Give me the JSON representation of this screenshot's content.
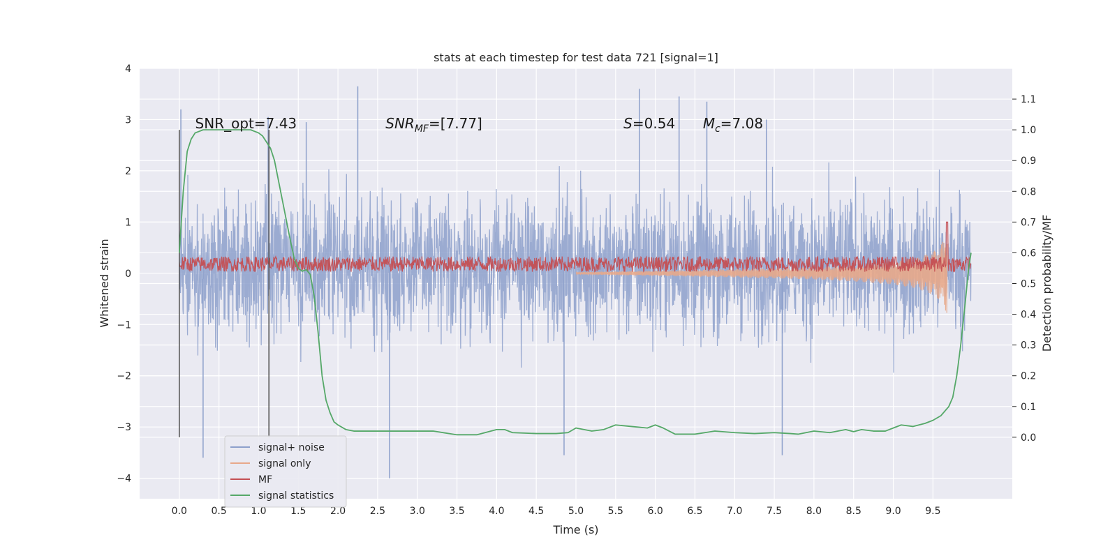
{
  "chart_data": {
    "type": "line",
    "title": "stats at each timestep for test data 721 [signal=1]",
    "xlabel": "Time (s)",
    "ylabel_left": "Whitened strain",
    "ylabel_right": "Detection probability/MF",
    "xlim": [
      -0.5,
      10.5
    ],
    "ylim_left": [
      -4.4,
      4.0
    ],
    "ylim_right": [
      -0.2,
      1.2
    ],
    "x_ticks": [
      0.0,
      0.5,
      1.0,
      1.5,
      2.0,
      2.5,
      3.0,
      3.5,
      4.0,
      4.5,
      5.0,
      5.5,
      6.0,
      6.5,
      7.0,
      7.5,
      8.0,
      8.5,
      9.0,
      9.5
    ],
    "x_tick_labels": [
      "0.0",
      "0.5",
      "1.0",
      "1.5",
      "2.0",
      "2.5",
      "3.0",
      "3.5",
      "4.0",
      "4.5",
      "5.0",
      "5.5",
      "6.0",
      "6.5",
      "7.0",
      "7.5",
      "8.0",
      "8.5",
      "9.0",
      "9.5"
    ],
    "y_left_ticks": [
      -4,
      -3,
      -2,
      -1,
      0,
      1,
      2,
      3,
      4
    ],
    "y_left_tick_labels": [
      "−4",
      "−3",
      "−2",
      "−1",
      "0",
      "1",
      "2",
      "3",
      "4"
    ],
    "y_right_ticks": [
      0.0,
      0.1,
      0.2,
      0.3,
      0.4,
      0.5,
      0.6,
      0.7,
      0.8,
      0.9,
      1.0,
      1.1
    ],
    "y_right_tick_labels": [
      "0.0",
      "0.1",
      "0.2",
      "0.3",
      "0.4",
      "0.5",
      "0.6",
      "0.7",
      "0.8",
      "0.9",
      "1.0",
      "1.1"
    ],
    "grid": true,
    "legend_position": "lower-left",
    "vertical_lines": [
      0.0,
      1.13
    ],
    "vertical_line_range_right": [
      0.0,
      1.0
    ],
    "annotations": [
      {
        "text": "SNR_opt=7.43",
        "x": 0.2,
        "y_right": 1.0
      },
      {
        "text": "SNR_MF=[7.77]",
        "x": 2.6,
        "y_right": 1.0
      },
      {
        "text": "S=0.54",
        "x": 5.6,
        "y_right": 1.0
      },
      {
        "text": "M_c=7.08",
        "x": 6.6,
        "y_right": 1.0
      }
    ],
    "series": [
      {
        "name": "signal+ noise",
        "axis": "left",
        "color": "#8da0cb",
        "kind": "noise_band",
        "x_range": [
          0.0,
          9.98
        ],
        "typical_envelope": [
          -1.5,
          2.2
        ],
        "min": -4.0,
        "max": 3.65,
        "peaks": [
          [
            0.02,
            3.2
          ],
          [
            0.3,
            -3.6
          ],
          [
            1.12,
            3.05
          ],
          [
            1.6,
            2.95
          ],
          [
            2.25,
            3.65
          ],
          [
            2.65,
            -4.0
          ],
          [
            5.8,
            3.6
          ],
          [
            6.3,
            3.45
          ],
          [
            6.65,
            3.35
          ],
          [
            7.4,
            3.0
          ],
          [
            7.6,
            -3.55
          ],
          [
            4.85,
            -3.55
          ]
        ]
      },
      {
        "name": "signal only",
        "axis": "left",
        "color": "#e8a88a",
        "kind": "chirp",
        "x": [
          5.0,
          6.0,
          7.0,
          8.0,
          8.5,
          9.0,
          9.3,
          9.5,
          9.6,
          9.68
        ],
        "amplitude": [
          0.02,
          0.05,
          0.08,
          0.12,
          0.16,
          0.22,
          0.3,
          0.42,
          0.55,
          0.8
        ]
      },
      {
        "name": "MF",
        "axis": "left",
        "color": "#c44e52",
        "kind": "noise_band",
        "x_range": [
          0.0,
          9.98
        ],
        "center": 0.18,
        "halfwidth": 0.15,
        "peak": [
          9.68,
          1.0
        ]
      },
      {
        "name": "signal statistics",
        "axis": "right",
        "color": "#55a868",
        "x": [
          0.0,
          0.05,
          0.1,
          0.15,
          0.2,
          0.3,
          0.5,
          0.7,
          0.9,
          1.0,
          1.05,
          1.1,
          1.15,
          1.2,
          1.3,
          1.4,
          1.45,
          1.5,
          1.55,
          1.6,
          1.65,
          1.7,
          1.75,
          1.8,
          1.85,
          1.9,
          1.95,
          2.0,
          2.1,
          2.2,
          2.3,
          2.5,
          2.75,
          3.0,
          3.2,
          3.5,
          3.75,
          4.0,
          4.1,
          4.2,
          4.5,
          4.75,
          4.9,
          5.0,
          5.2,
          5.35,
          5.5,
          5.7,
          5.9,
          6.0,
          6.1,
          6.25,
          6.5,
          6.75,
          7.0,
          7.25,
          7.5,
          7.7,
          7.8,
          8.0,
          8.2,
          8.4,
          8.5,
          8.6,
          8.75,
          8.9,
          9.0,
          9.1,
          9.25,
          9.4,
          9.5,
          9.6,
          9.7,
          9.75,
          9.8,
          9.85,
          9.9,
          9.95,
          9.98
        ],
        "values": [
          0.6,
          0.8,
          0.93,
          0.97,
          0.99,
          1.0,
          1.0,
          1.0,
          1.0,
          0.99,
          0.98,
          0.96,
          0.94,
          0.9,
          0.77,
          0.64,
          0.58,
          0.55,
          0.54,
          0.545,
          0.53,
          0.46,
          0.34,
          0.2,
          0.12,
          0.08,
          0.05,
          0.04,
          0.025,
          0.02,
          0.02,
          0.02,
          0.02,
          0.02,
          0.02,
          0.008,
          0.008,
          0.025,
          0.025,
          0.015,
          0.012,
          0.012,
          0.015,
          0.03,
          0.02,
          0.025,
          0.04,
          0.035,
          0.03,
          0.04,
          0.03,
          0.01,
          0.01,
          0.02,
          0.015,
          0.012,
          0.015,
          0.012,
          0.01,
          0.02,
          0.015,
          0.025,
          0.018,
          0.025,
          0.02,
          0.02,
          0.03,
          0.04,
          0.035,
          0.045,
          0.055,
          0.07,
          0.1,
          0.13,
          0.2,
          0.3,
          0.42,
          0.55,
          0.6
        ]
      }
    ]
  }
}
